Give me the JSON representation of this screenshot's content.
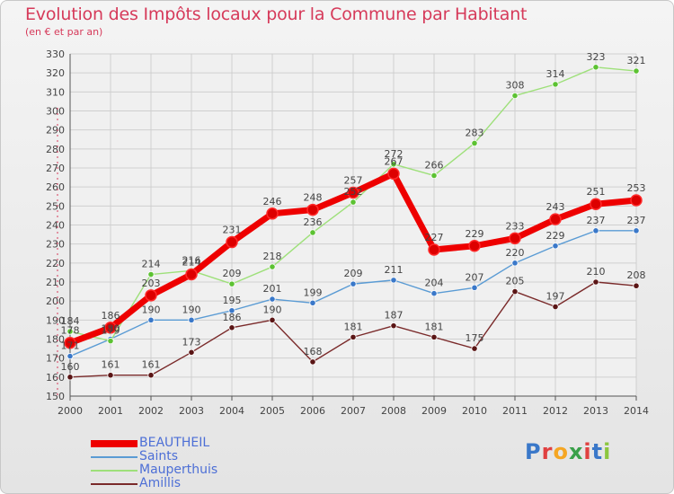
{
  "title": "Evolution des Impôts locaux pour la Commune par Habitant",
  "subtitle": "(en € et par an)",
  "logo": {
    "text": "Proxiti",
    "letter_colors": [
      "#3a78c9",
      "#e04040",
      "#f5a623",
      "#3aa04a",
      "#e04040",
      "#3a78c9",
      "#8cc63f"
    ]
  },
  "chart_data": {
    "type": "line",
    "x": [
      2000,
      2001,
      2002,
      2003,
      2004,
      2005,
      2006,
      2007,
      2008,
      2009,
      2010,
      2011,
      2012,
      2013,
      2014
    ],
    "ylim": [
      150,
      330
    ],
    "yticks": [
      150,
      160,
      170,
      180,
      190,
      200,
      210,
      220,
      230,
      240,
      250,
      260,
      270,
      280,
      290,
      300,
      310,
      320,
      330
    ],
    "grid": true,
    "legend_position": "bottom-left",
    "series": [
      {
        "name": "BEAUTHEIL",
        "color": "#ee0000",
        "marker": "#dd0000",
        "values": [
          178,
          186,
          203,
          214,
          231,
          246,
          248,
          257,
          267,
          227,
          229,
          233,
          243,
          251,
          253
        ]
      },
      {
        "name": "Saints",
        "color": "#5a9bd4",
        "marker": "#3a78c9",
        "values": [
          171,
          180,
          190,
          190,
          195,
          201,
          199,
          209,
          211,
          204,
          207,
          220,
          229,
          237,
          237
        ]
      },
      {
        "name": "Mauperthuis",
        "color": "#9ee07a",
        "marker": "#5cc232",
        "values": [
          184,
          179,
          214,
          216,
          209,
          218,
          236,
          252,
          272,
          266,
          283,
          308,
          314,
          323,
          321
        ]
      },
      {
        "name": "Amillis",
        "color": "#7a2a2a",
        "marker": "#5a1515",
        "values": [
          160,
          161,
          161,
          173,
          186,
          190,
          168,
          181,
          187,
          181,
          175,
          205,
          197,
          210,
          208
        ]
      }
    ]
  }
}
